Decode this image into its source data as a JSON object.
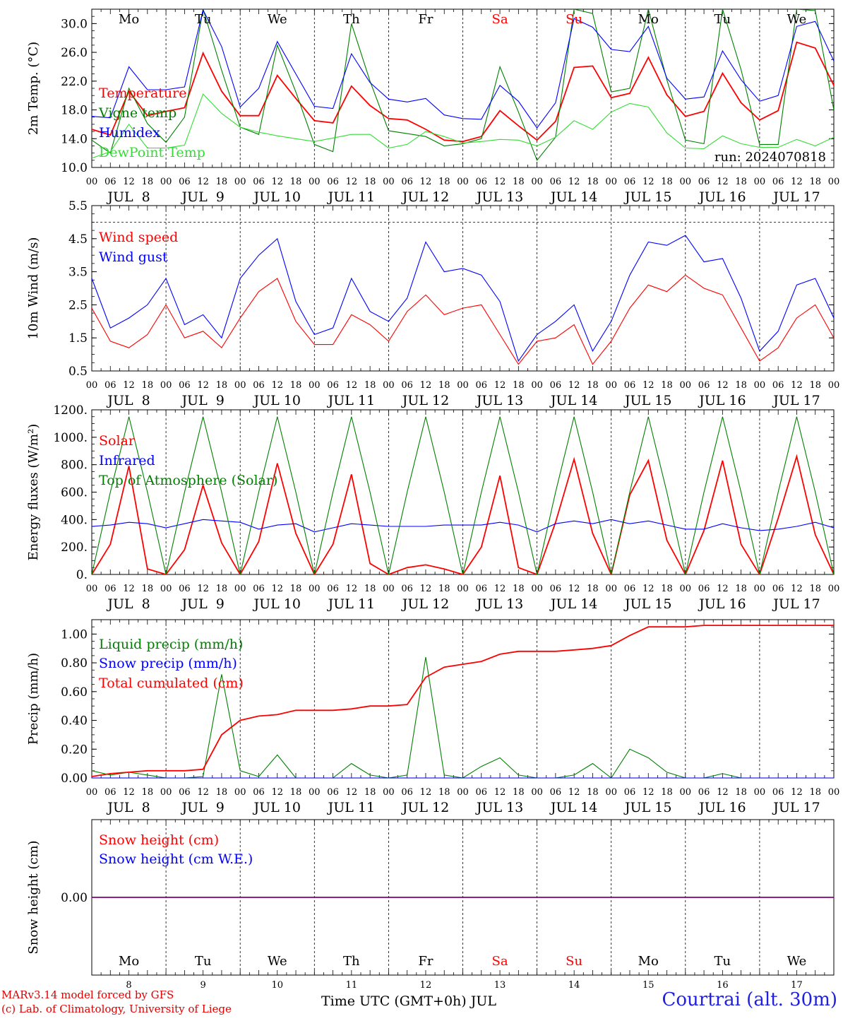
{
  "meteogram": {
    "run_label": "run: 2024070818",
    "station": "Courtrai (alt. 30m)",
    "credit_line1": "MARv3.14 model forced by GFS",
    "credit_line2": "(c) Lab. of Climatology, University of Liege",
    "x_title": "Time UTC (GMT+0h) JUL",
    "hour_ticks": [
      "00",
      "06",
      "12",
      "18"
    ],
    "days": [
      {
        "date": "JUL  8",
        "num": "8",
        "dow": "Mo",
        "weekend": false
      },
      {
        "date": "JUL  9",
        "num": "9",
        "dow": "Tu",
        "weekend": false
      },
      {
        "date": "JUL 10",
        "num": "10",
        "dow": "We",
        "weekend": false
      },
      {
        "date": "JUL 11",
        "num": "11",
        "dow": "Th",
        "weekend": false
      },
      {
        "date": "JUL 12",
        "num": "12",
        "dow": "Fr",
        "weekend": false
      },
      {
        "date": "JUL 13",
        "num": "13",
        "dow": "Sa",
        "weekend": true
      },
      {
        "date": "JUL 14",
        "num": "14",
        "dow": "Su",
        "weekend": true
      },
      {
        "date": "JUL 15",
        "num": "15",
        "dow": "Mo",
        "weekend": false
      },
      {
        "date": "JUL 16",
        "num": "16",
        "dow": "Tu",
        "weekend": false
      },
      {
        "date": "JUL 17",
        "num": "17",
        "dow": "We",
        "weekend": false
      }
    ],
    "final_tick": "00",
    "colors": {
      "red": "#ff0000",
      "blue": "#0000ff",
      "green": "#008000",
      "lightgreen": "#33dd33",
      "weekend": "#ff0000",
      "purple": "#800080"
    }
  },
  "chart_data": [
    {
      "type": "line",
      "ylabel": "2m Temp. (°C)",
      "ylim": [
        10,
        32
      ],
      "yticks": [
        "10.0",
        "14.0",
        "18.0",
        "22.0",
        "26.0",
        "30.0"
      ],
      "ytick_values": [
        10,
        14,
        18,
        22,
        26,
        30
      ],
      "show_day_names": true,
      "x_hours": [
        0,
        6,
        12,
        18,
        24,
        30,
        36,
        42,
        48,
        54,
        60,
        66,
        72,
        78,
        84,
        90,
        96,
        102,
        108,
        114,
        120,
        126,
        132,
        138,
        144,
        150,
        156,
        162,
        168,
        174,
        180,
        186,
        192,
        198,
        204,
        210,
        216,
        222,
        228,
        234,
        240
      ],
      "series": [
        {
          "name": "Temperature",
          "color": "red",
          "values": [
            15.3,
            14.5,
            20.6,
            17.2,
            17.8,
            18.3,
            25.9,
            20.6,
            17.2,
            17.2,
            22.8,
            19.6,
            16.5,
            16.2,
            21.3,
            18.6,
            16.8,
            16.6,
            15.3,
            13.8,
            13.6,
            14.3,
            17.9,
            15.8,
            13.8,
            16.4,
            23.9,
            24.1,
            19.7,
            20.3,
            25.3,
            20.1,
            17.1,
            17.8,
            23.1,
            19.0,
            16.6,
            17.9,
            27.4,
            26.6,
            21.4
          ]
        },
        {
          "name": "Vigne temp",
          "color": "green",
          "values": [
            13.8,
            12.0,
            21.0,
            16.1,
            13.5,
            17.0,
            32.0,
            23.5,
            15.6,
            14.6,
            27.0,
            20.5,
            13.2,
            12.2,
            30.0,
            22.0,
            15.1,
            14.7,
            14.3,
            13.0,
            13.3,
            14.0,
            24.0,
            17.7,
            11.0,
            14.2,
            32.0,
            31.4,
            20.5,
            21.0,
            32.0,
            22.2,
            13.8,
            13.3,
            32.0,
            23.6,
            13.2,
            13.2,
            32.0,
            31.8,
            18.0
          ]
        },
        {
          "name": "Humidex",
          "color": "blue",
          "values": [
            17.1,
            16.9,
            24.0,
            20.8,
            20.8,
            21.2,
            31.9,
            26.8,
            18.4,
            21.0,
            27.5,
            23.0,
            18.5,
            18.2,
            25.8,
            21.8,
            19.5,
            19.1,
            19.6,
            17.3,
            16.8,
            16.7,
            21.4,
            19.2,
            15.5,
            19.0,
            30.7,
            29.5,
            26.4,
            26.1,
            29.6,
            22.4,
            19.5,
            19.8,
            26.2,
            22.2,
            19.2,
            20.0,
            29.6,
            30.3,
            24.8
          ]
        },
        {
          "name": "DewPoint Temp",
          "color": "lightgreen",
          "values": [
            11.3,
            12.2,
            16.0,
            12.7,
            12.7,
            13.1,
            20.2,
            17.5,
            15.6,
            14.9,
            14.4,
            14.0,
            13.6,
            14.1,
            14.6,
            14.6,
            12.7,
            13.2,
            15.0,
            14.3,
            13.4,
            13.6,
            13.9,
            13.8,
            13.0,
            14.2,
            16.5,
            15.3,
            17.7,
            18.9,
            18.4,
            14.8,
            12.7,
            12.6,
            14.4,
            13.3,
            12.8,
            12.8,
            13.9,
            13.0,
            14.2
          ]
        }
      ]
    },
    {
      "type": "line",
      "ylabel": "10m Wind (m/s)",
      "ylim": [
        0.5,
        5.5
      ],
      "yticks": [
        "0.5",
        "1.5",
        "2.5",
        "3.5",
        "4.5",
        "5.5"
      ],
      "ytick_values": [
        0.5,
        1.5,
        2.5,
        3.5,
        4.5,
        5.5
      ],
      "ref_line": 5.0,
      "x_hours": [
        0,
        6,
        12,
        18,
        24,
        30,
        36,
        42,
        48,
        54,
        60,
        66,
        72,
        78,
        84,
        90,
        96,
        102,
        108,
        114,
        120,
        126,
        132,
        138,
        144,
        150,
        156,
        162,
        168,
        174,
        180,
        186,
        192,
        198,
        204,
        210,
        216,
        222,
        228,
        234,
        240
      ],
      "series": [
        {
          "name": "Wind speed",
          "color": "red",
          "values": [
            2.4,
            1.4,
            1.2,
            1.6,
            2.5,
            1.5,
            1.7,
            1.2,
            2.1,
            2.9,
            3.3,
            2.0,
            1.3,
            1.3,
            2.2,
            1.9,
            1.4,
            2.3,
            2.8,
            2.2,
            2.4,
            2.5,
            1.6,
            0.7,
            1.4,
            1.5,
            1.9,
            0.7,
            1.4,
            2.4,
            3.1,
            2.9,
            3.4,
            3.0,
            2.8,
            1.8,
            0.8,
            1.2,
            2.1,
            2.5,
            1.5
          ]
        },
        {
          "name": "Wind gust",
          "color": "blue",
          "values": [
            3.3,
            1.8,
            2.1,
            2.5,
            3.3,
            1.9,
            2.2,
            1.5,
            3.3,
            4.0,
            4.5,
            2.6,
            1.6,
            1.8,
            3.3,
            2.3,
            2.0,
            2.7,
            4.4,
            3.5,
            3.6,
            3.4,
            2.6,
            0.8,
            1.6,
            2.0,
            2.5,
            1.1,
            2.0,
            3.4,
            4.4,
            4.3,
            4.6,
            3.8,
            3.9,
            2.7,
            1.1,
            1.7,
            3.1,
            3.3,
            2.1
          ]
        }
      ]
    },
    {
      "type": "line",
      "ylabel": "Energy fluxes (W/m²)",
      "ylim": [
        0,
        1200
      ],
      "yticks": [
        "0.",
        "200.",
        "400.",
        "600.",
        "800.",
        "1000.",
        "1200."
      ],
      "ytick_values": [
        0,
        200,
        400,
        600,
        800,
        1000,
        1200
      ],
      "x_hours": [
        0,
        6,
        12,
        18,
        24,
        30,
        36,
        42,
        48,
        54,
        60,
        66,
        72,
        78,
        84,
        90,
        96,
        102,
        108,
        114,
        120,
        126,
        132,
        138,
        144,
        150,
        156,
        162,
        168,
        174,
        180,
        186,
        192,
        198,
        204,
        210,
        216,
        222,
        228,
        234,
        240
      ],
      "series": [
        {
          "name": "Solar",
          "color": "red",
          "values": [
            0,
            220,
            790,
            40,
            0,
            180,
            650,
            230,
            0,
            240,
            810,
            300,
            0,
            220,
            730,
            80,
            0,
            50,
            70,
            40,
            0,
            200,
            720,
            50,
            0,
            380,
            840,
            300,
            0,
            580,
            830,
            250,
            0,
            320,
            830,
            220,
            0,
            410,
            860,
            290,
            0
          ]
        },
        {
          "name": "Infrared",
          "color": "blue",
          "values": [
            350,
            360,
            380,
            370,
            340,
            370,
            400,
            390,
            380,
            330,
            360,
            370,
            310,
            340,
            370,
            360,
            350,
            350,
            350,
            360,
            360,
            360,
            380,
            360,
            310,
            370,
            390,
            370,
            400,
            370,
            390,
            360,
            330,
            330,
            370,
            340,
            320,
            330,
            350,
            380,
            340
          ]
        },
        {
          "name": "Top of Atmosphere (Solar)",
          "color": "green",
          "values": [
            0,
            600,
            1150,
            600,
            0,
            600,
            1150,
            600,
            0,
            600,
            1150,
            600,
            0,
            600,
            1150,
            600,
            0,
            600,
            1150,
            600,
            0,
            600,
            1150,
            600,
            0,
            600,
            1150,
            600,
            0,
            600,
            1150,
            600,
            0,
            600,
            1150,
            600,
            0,
            600,
            1150,
            600,
            0
          ]
        }
      ]
    },
    {
      "type": "line",
      "ylabel": "Precip (mm/h)",
      "ylim": [
        0,
        1.1
      ],
      "yticks": [
        "0.00",
        "0.20",
        "0.40",
        "0.60",
        "0.80",
        "1.00"
      ],
      "ytick_values": [
        0,
        0.2,
        0.4,
        0.6,
        0.8,
        1.0
      ],
      "x_hours": [
        0,
        6,
        12,
        18,
        24,
        30,
        36,
        42,
        48,
        54,
        60,
        66,
        72,
        78,
        84,
        90,
        96,
        102,
        108,
        114,
        120,
        126,
        132,
        138,
        144,
        150,
        156,
        162,
        168,
        174,
        180,
        186,
        192,
        198,
        204,
        210,
        216,
        222,
        228,
        234,
        240
      ],
      "series": [
        {
          "name": "Liquid precip (mm/h)",
          "color": "green",
          "values": [
            0.05,
            0.02,
            0.04,
            0.02,
            0,
            0,
            0.01,
            0.72,
            0.05,
            0.01,
            0.16,
            0,
            0,
            0,
            0.1,
            0.02,
            0,
            0.02,
            0.84,
            0.02,
            0,
            0.08,
            0.14,
            0.02,
            0,
            0,
            0.02,
            0.1,
            0,
            0.2,
            0.14,
            0.04,
            0,
            0,
            0.03,
            0,
            0,
            0,
            0,
            0,
            0
          ]
        },
        {
          "name": "Snow precip (mm/h)",
          "color": "blue",
          "values": [
            0,
            0,
            0,
            0,
            0,
            0,
            0,
            0,
            0,
            0,
            0,
            0,
            0,
            0,
            0,
            0,
            0,
            0,
            0,
            0,
            0,
            0,
            0,
            0,
            0,
            0,
            0,
            0,
            0,
            0,
            0,
            0,
            0,
            0,
            0,
            0,
            0,
            0,
            0,
            0,
            0
          ]
        },
        {
          "name": "Total cumulated (cm)",
          "color": "red",
          "values": [
            0.01,
            0.03,
            0.04,
            0.05,
            0.05,
            0.05,
            0.06,
            0.3,
            0.4,
            0.43,
            0.44,
            0.47,
            0.47,
            0.47,
            0.48,
            0.5,
            0.5,
            0.51,
            0.7,
            0.77,
            0.79,
            0.81,
            0.86,
            0.88,
            0.88,
            0.88,
            0.89,
            0.9,
            0.92,
            0.99,
            1.05,
            1.05,
            1.05,
            1.06,
            1.06,
            1.06,
            1.06,
            1.06,
            1.06,
            1.06,
            1.06
          ]
        }
      ]
    },
    {
      "type": "line",
      "ylabel": "Snow height (cm)",
      "ylim": [
        -1,
        1
      ],
      "yticks": [
        "0.00"
      ],
      "ytick_values": [
        0
      ],
      "show_bottom_days": true,
      "x_hours": [
        0,
        240
      ],
      "series": [
        {
          "name": "Snow height (cm)",
          "color": "red",
          "values": [
            0,
            0
          ]
        },
        {
          "name": "Snow height (cm W.E.)",
          "color": "blue",
          "values": [
            0,
            0
          ]
        }
      ]
    }
  ]
}
